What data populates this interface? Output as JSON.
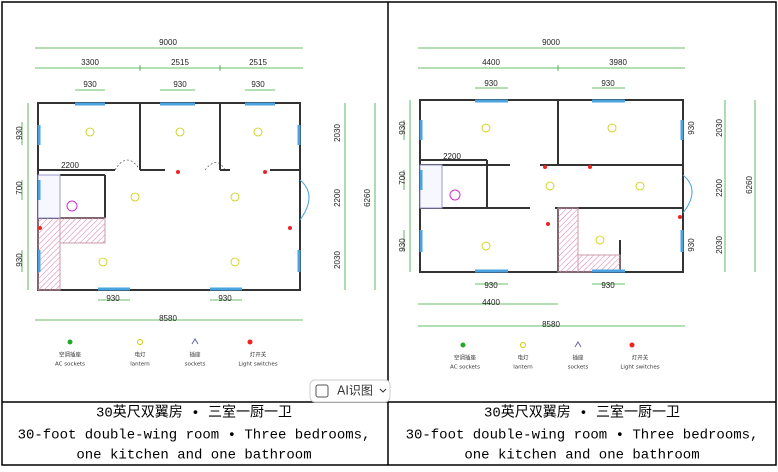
{
  "plans": [
    {
      "dims": {
        "total_width": "9000",
        "segments": [
          "3300",
          "2515",
          "2515"
        ],
        "top_windows": [
          "930",
          "930",
          "930"
        ],
        "left": [
          "930",
          "700",
          "930"
        ],
        "right": [
          "2030",
          "2200",
          "2030"
        ],
        "overall_height": "6260",
        "bottom_windows": [
          "930",
          "930"
        ],
        "inner_width": "8580",
        "small": [
          "2200"
        ]
      },
      "legend": [
        {
          "zh": "空调插座",
          "en": "AC sockets"
        },
        {
          "zh": "电灯",
          "en": "lantern"
        },
        {
          "zh": "插座",
          "en": "sockets"
        },
        {
          "zh": "灯开关",
          "en": "Light switches"
        }
      ],
      "caption": {
        "title": "30英尺双翼房 • 三室一厨一卫",
        "line2": "30-foot double-wing room • Three bedrooms,",
        "line3": "one kitchen and one bathroom"
      }
    },
    {
      "dims": {
        "total_width": "9000",
        "segments": [
          "4400",
          "3980"
        ],
        "top_windows": [
          "930",
          "930"
        ],
        "left": [
          "930",
          "700",
          "930"
        ],
        "right_windows": [
          "930",
          "930"
        ],
        "right": [
          "2030",
          "2200",
          "2030"
        ],
        "overall_height": "6260",
        "bottom_windows": [
          "930",
          "930"
        ],
        "bottom_segment": "4400",
        "inner_width": "8580",
        "small": [
          "2200"
        ]
      },
      "legend": [
        {
          "zh": "空调插座",
          "en": "AC sockets"
        },
        {
          "zh": "电灯",
          "en": "lantern"
        },
        {
          "zh": "插座",
          "en": "sockets"
        },
        {
          "zh": "灯开关",
          "en": "Light switches"
        }
      ],
      "caption": {
        "title": "30英尺双翼房 • 三室一厨一卫",
        "line2": "30-foot double-wing room • Three bedrooms,",
        "line3": "one kitchen and one bathroom"
      }
    }
  ],
  "overlay_button": "AI识图"
}
